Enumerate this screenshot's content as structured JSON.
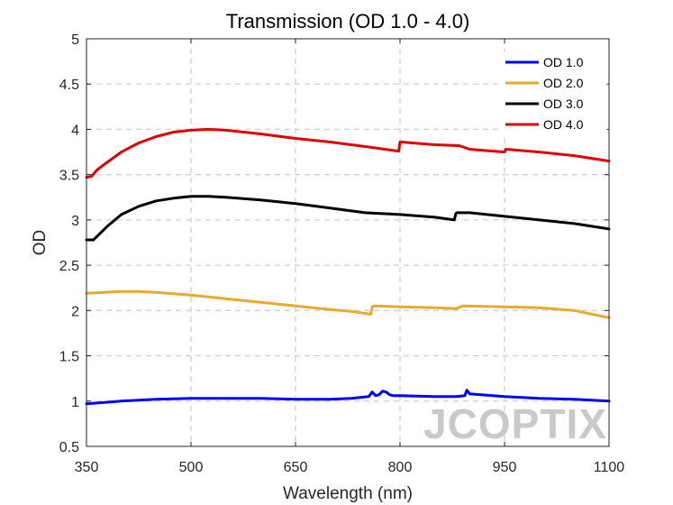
{
  "chart_data": {
    "type": "line",
    "title": "Transmission (OD 1.0 - 4.0)",
    "xlabel": "Wavelength (nm)",
    "ylabel": "OD",
    "xlim": [
      350,
      1100
    ],
    "ylim": [
      0.5,
      5
    ],
    "xticks": [
      350,
      500,
      650,
      800,
      950,
      1100
    ],
    "xtick_labels": [
      "350",
      "500",
      "650",
      "800",
      "950",
      "1100"
    ],
    "yticks": [
      0.5,
      1,
      1.5,
      2,
      2.5,
      3,
      3.5,
      4,
      4.5,
      5
    ],
    "ytick_labels": [
      "0.5",
      "1",
      "1.5",
      "2",
      "2.5",
      "3",
      "3.5",
      "4",
      "4.5",
      "5"
    ],
    "grid": true,
    "legend_position": "top-right",
    "series": [
      {
        "name": "OD 1.0",
        "color": "#0000ff",
        "x": [
          350,
          400,
          450,
          500,
          550,
          600,
          650,
          700,
          730,
          755,
          760,
          765,
          770,
          775,
          780,
          785,
          790,
          800,
          850,
          880,
          893,
          896,
          900,
          950,
          1000,
          1050,
          1100
        ],
        "y": [
          0.97,
          1.0,
          1.02,
          1.03,
          1.03,
          1.03,
          1.02,
          1.02,
          1.03,
          1.05,
          1.1,
          1.06,
          1.07,
          1.11,
          1.1,
          1.07,
          1.06,
          1.06,
          1.05,
          1.05,
          1.06,
          1.12,
          1.08,
          1.05,
          1.03,
          1.02,
          1.0
        ]
      },
      {
        "name": "OD 2.0",
        "color": "#e8a92e",
        "x": [
          350,
          375,
          400,
          425,
          450,
          500,
          550,
          600,
          650,
          700,
          730,
          758,
          760,
          763,
          800,
          850,
          880,
          890,
          950,
          1000,
          1050,
          1100
        ],
        "y": [
          2.19,
          2.2,
          2.21,
          2.21,
          2.2,
          2.17,
          2.13,
          2.09,
          2.05,
          2.01,
          1.99,
          1.96,
          2.04,
          2.05,
          2.04,
          2.03,
          2.02,
          2.05,
          2.04,
          2.03,
          2.0,
          1.92
        ]
      },
      {
        "name": "OD 3.0",
        "color": "#000000",
        "x": [
          350,
          355,
          360,
          380,
          400,
          425,
          450,
          475,
          500,
          525,
          550,
          600,
          650,
          700,
          750,
          800,
          850,
          878,
          880,
          882,
          900,
          950,
          1000,
          1050,
          1100
        ],
        "y": [
          2.78,
          2.78,
          2.78,
          2.93,
          3.06,
          3.15,
          3.21,
          3.24,
          3.26,
          3.26,
          3.25,
          3.22,
          3.18,
          3.13,
          3.08,
          3.06,
          3.03,
          3.0,
          3.07,
          3.08,
          3.08,
          3.04,
          3.0,
          2.96,
          2.9
        ]
      },
      {
        "name": "OD 4.0",
        "color": "#e00000",
        "x": [
          350,
          357,
          365,
          375,
          400,
          425,
          450,
          475,
          500,
          525,
          550,
          600,
          650,
          700,
          750,
          798,
          800,
          802,
          850,
          885,
          900,
          950,
          952,
          1000,
          1050,
          1100
        ],
        "y": [
          3.47,
          3.48,
          3.55,
          3.61,
          3.75,
          3.85,
          3.92,
          3.97,
          3.99,
          4.0,
          3.99,
          3.95,
          3.9,
          3.86,
          3.81,
          3.76,
          3.86,
          3.86,
          3.83,
          3.82,
          3.78,
          3.75,
          3.78,
          3.75,
          3.71,
          3.65
        ]
      }
    ]
  },
  "watermark": "JCOPTIX"
}
